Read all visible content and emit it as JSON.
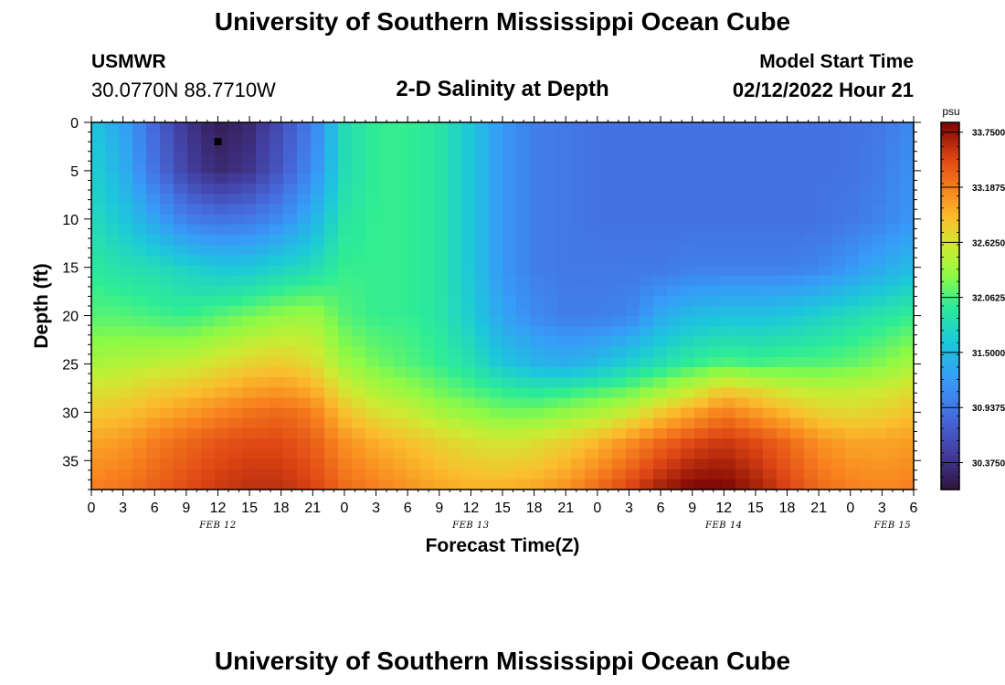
{
  "header": {
    "title": "University of Southern Mississippi Ocean Cube",
    "station": "USMWR",
    "coords": "30.0770N  88.7710W",
    "plot_title": "2-D Salinity at Depth",
    "start_label": "Model Start Time",
    "start_value": "02/12/2022 Hour 21"
  },
  "footer": {
    "title": "University of Southern Mississippi Ocean Cube"
  },
  "chart_data": {
    "type": "heatmap",
    "title": "2-D Salinity at Depth",
    "xlabel": "Forecast Time(Z)",
    "ylabel": "Depth (ft)",
    "x_ticks": [
      "0",
      "3",
      "6",
      "9",
      "12",
      "15",
      "18",
      "21",
      "0",
      "3",
      "6",
      "9",
      "12",
      "15",
      "18",
      "21",
      "0",
      "3",
      "6",
      "9",
      "12",
      "15",
      "18",
      "21",
      "0",
      "3",
      "6"
    ],
    "date_labels": [
      {
        "label": "FEB 12",
        "hour": 12
      },
      {
        "label": "FEB 13",
        "hour": 36
      },
      {
        "label": "FEB 14",
        "hour": 60
      },
      {
        "label": "FEB 15",
        "hour": 76
      }
    ],
    "xlim_hours": [
      0,
      78
    ],
    "y_ticks": [
      0,
      5,
      10,
      15,
      20,
      25,
      30,
      35
    ],
    "ylim_ft": [
      0,
      38
    ],
    "colorbar": {
      "unit": "psu",
      "range": [
        30.1,
        33.85
      ],
      "ticks": [
        "33.7500",
        "33.1875",
        "32.6250",
        "32.0625",
        "31.5000",
        "30.9375",
        "30.3750"
      ],
      "tick_values": [
        33.75,
        33.1875,
        32.625,
        32.0625,
        31.5,
        30.9375,
        30.375
      ]
    },
    "marker": {
      "hour": 12,
      "depth_ft": 2
    },
    "depths_ft": [
      0,
      5,
      10,
      15,
      20,
      25,
      28,
      30,
      33,
      38
    ],
    "hours": [
      0,
      3,
      6,
      9,
      12,
      15,
      18,
      21,
      24,
      27,
      30,
      33,
      36,
      39,
      42,
      45,
      48,
      51,
      54,
      57,
      60,
      63,
      66,
      69,
      72,
      75,
      78
    ],
    "salinity": [
      [
        31.6,
        31.3,
        30.8,
        30.4,
        30.2,
        30.3,
        30.6,
        31.0,
        31.8,
        32.0,
        32.0,
        31.9,
        31.6,
        31.2,
        31.0,
        30.95,
        30.9,
        30.9,
        30.9,
        30.9,
        30.9,
        30.9,
        30.9,
        30.9,
        30.9,
        30.95,
        31.1
      ],
      [
        31.7,
        31.4,
        30.9,
        30.5,
        30.3,
        30.4,
        30.7,
        31.1,
        31.8,
        32.0,
        32.0,
        31.9,
        31.6,
        31.2,
        31.0,
        30.95,
        30.9,
        30.9,
        30.9,
        30.9,
        30.9,
        30.9,
        30.9,
        30.9,
        30.9,
        31.0,
        31.15
      ],
      [
        31.8,
        31.6,
        31.3,
        31.0,
        30.9,
        30.95,
        31.1,
        31.4,
        31.9,
        32.0,
        32.0,
        31.9,
        31.6,
        31.2,
        31.0,
        30.95,
        30.9,
        30.9,
        30.9,
        30.9,
        30.9,
        30.9,
        30.9,
        30.9,
        30.95,
        31.05,
        31.2
      ],
      [
        31.95,
        31.85,
        31.8,
        31.7,
        31.6,
        31.6,
        31.7,
        31.8,
        32.0,
        32.0,
        32.0,
        31.9,
        31.6,
        31.2,
        31.0,
        30.95,
        30.95,
        30.95,
        30.95,
        31.0,
        31.0,
        31.0,
        31.0,
        31.05,
        31.2,
        31.35,
        31.5
      ],
      [
        32.1,
        32.1,
        32.05,
        32.0,
        32.1,
        32.2,
        32.3,
        32.35,
        32.1,
        32.0,
        32.0,
        31.9,
        31.65,
        31.3,
        31.1,
        31.0,
        31.0,
        31.05,
        31.35,
        31.5,
        31.55,
        31.55,
        31.6,
        31.7,
        31.8,
        31.9,
        32.0
      ],
      [
        32.4,
        32.45,
        32.5,
        32.55,
        32.65,
        32.75,
        32.8,
        32.7,
        32.35,
        32.2,
        32.1,
        32.0,
        31.85,
        31.6,
        31.45,
        31.4,
        31.5,
        31.7,
        31.85,
        32.0,
        32.1,
        32.05,
        32.1,
        32.1,
        32.15,
        32.25,
        32.4
      ],
      [
        32.65,
        32.7,
        32.8,
        32.85,
        32.95,
        33.05,
        33.1,
        33.0,
        32.65,
        32.45,
        32.35,
        32.2,
        32.1,
        32.0,
        31.95,
        32.0,
        32.1,
        32.2,
        32.4,
        32.6,
        32.85,
        32.75,
        32.6,
        32.55,
        32.55,
        32.6,
        32.7
      ],
      [
        32.8,
        32.85,
        32.95,
        33.05,
        33.15,
        33.25,
        33.3,
        33.2,
        32.85,
        32.65,
        32.55,
        32.4,
        32.3,
        32.2,
        32.2,
        32.3,
        32.4,
        32.55,
        32.8,
        33.0,
        33.2,
        33.05,
        32.9,
        32.75,
        32.7,
        32.75,
        32.85
      ],
      [
        33.0,
        33.05,
        33.2,
        33.3,
        33.4,
        33.45,
        33.45,
        33.35,
        33.1,
        32.95,
        32.85,
        32.75,
        32.65,
        32.6,
        32.65,
        32.75,
        32.9,
        33.1,
        33.3,
        33.45,
        33.55,
        33.45,
        33.3,
        33.1,
        33.0,
        33.0,
        33.05
      ],
      [
        33.2,
        33.25,
        33.35,
        33.45,
        33.55,
        33.6,
        33.6,
        33.5,
        33.3,
        33.2,
        33.1,
        33.0,
        32.95,
        32.95,
        33.0,
        33.1,
        33.3,
        33.5,
        33.7,
        33.85,
        33.85,
        33.7,
        33.5,
        33.3,
        33.2,
        33.15,
        33.2
      ]
    ]
  }
}
